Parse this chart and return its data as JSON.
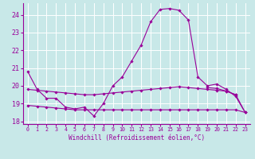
{
  "xlabel": "Windchill (Refroidissement éolien,°C)",
  "background_color": "#c8e8e8",
  "grid_color": "#ffffff",
  "line_color": "#990099",
  "xlim": [
    -0.5,
    23.5
  ],
  "ylim": [
    17.85,
    24.65
  ],
  "yticks": [
    18,
    19,
    20,
    21,
    22,
    23,
    24
  ],
  "xticks": [
    0,
    1,
    2,
    3,
    4,
    5,
    6,
    7,
    8,
    9,
    10,
    11,
    12,
    13,
    14,
    15,
    16,
    17,
    18,
    19,
    20,
    21,
    22,
    23
  ],
  "series": [
    [
      20.8,
      19.8,
      19.3,
      19.3,
      18.8,
      18.7,
      18.8,
      18.3,
      19.0,
      20.0,
      20.5,
      21.4,
      22.3,
      23.6,
      24.3,
      24.35,
      24.25,
      23.7,
      20.5,
      20.0,
      20.1,
      19.8,
      19.4,
      18.5
    ],
    [
      null,
      null,
      null,
      null,
      null,
      null,
      null,
      null,
      null,
      null,
      null,
      null,
      null,
      null,
      null,
      null,
      null,
      null,
      null,
      19.9,
      19.85,
      19.7,
      19.5,
      18.5
    ],
    [
      19.8,
      19.75,
      19.7,
      19.65,
      19.6,
      19.55,
      19.5,
      19.5,
      19.55,
      19.6,
      19.65,
      19.7,
      19.75,
      19.8,
      19.85,
      19.9,
      19.95,
      19.9,
      19.85,
      19.8,
      19.75,
      19.7,
      19.5,
      null
    ],
    [
      18.9,
      18.85,
      18.8,
      18.75,
      18.7,
      18.65,
      18.65,
      18.65,
      18.65,
      18.65,
      18.65,
      18.65,
      18.65,
      18.65,
      18.65,
      18.65,
      18.65,
      18.65,
      18.65,
      18.65,
      18.65,
      18.65,
      18.65,
      18.5
    ]
  ]
}
